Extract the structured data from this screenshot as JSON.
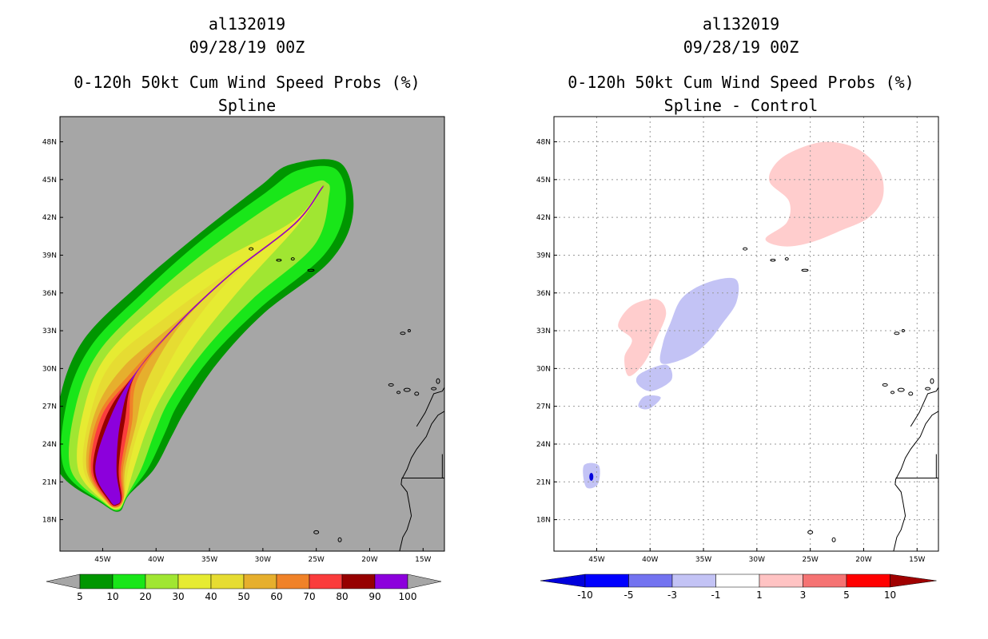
{
  "chart_data": [
    {
      "type": "filled-contour-map",
      "storm_id": "al132019",
      "datetime": "09/28/19 00Z",
      "title": "0-120h 50kt Cum Wind Speed Probs (%)",
      "subtitle": "Spline",
      "xlim": [
        -49,
        -13
      ],
      "ylim": [
        15.5,
        50
      ],
      "lon_ticks": [
        {
          "value": -45,
          "label": "45W"
        },
        {
          "value": -40,
          "label": "40W"
        },
        {
          "value": -35,
          "label": "35W"
        },
        {
          "value": -30,
          "label": "30W"
        },
        {
          "value": -25,
          "label": "25W"
        },
        {
          "value": -20,
          "label": "20W"
        },
        {
          "value": -15,
          "label": "15W"
        }
      ],
      "lat_ticks": [
        {
          "value": 18,
          "label": "18N"
        },
        {
          "value": 21,
          "label": "21N"
        },
        {
          "value": 24,
          "label": "24N"
        },
        {
          "value": 27,
          "label": "27N"
        },
        {
          "value": 30,
          "label": "30N"
        },
        {
          "value": 33,
          "label": "33N"
        },
        {
          "value": 36,
          "label": "36N"
        },
        {
          "value": 39,
          "label": "39N"
        },
        {
          "value": 42,
          "label": "42N"
        },
        {
          "value": 45,
          "label": "45N"
        },
        {
          "value": 48,
          "label": "48N"
        }
      ],
      "grid": false,
      "background": "#a6a6a6",
      "colorbar_labels": [
        "5",
        "10",
        "20",
        "30",
        "40",
        "50",
        "60",
        "70",
        "80",
        "90",
        "100"
      ],
      "colorbar_colors": [
        "#009600",
        "#19e619",
        "#a0e632",
        "#e6eb32",
        "#e6dc32",
        "#e6af2d",
        "#f08228",
        "#fa3c3c",
        "#960000",
        "#8c00dc"
      ],
      "track": [
        {
          "lon": -43.8,
          "lat": 19.6
        },
        {
          "lon": -44.7,
          "lat": 22.0
        },
        {
          "lon": -43.8,
          "lat": 26.0
        },
        {
          "lon": -42.0,
          "lat": 29.5
        },
        {
          "lon": -38.0,
          "lat": 33.5
        },
        {
          "lon": -33.0,
          "lat": 37.5
        },
        {
          "lon": -27.0,
          "lat": 41.5
        },
        {
          "lon": -24.5,
          "lat": 44.3
        }
      ],
      "bands": [
        {
          "level": "5",
          "color": "#009600",
          "hw": [
            1.3,
            4.5,
            5.5,
            5.8,
            5.2,
            4.8,
            4.8,
            3.7
          ]
        },
        {
          "level": "10",
          "color": "#19e619",
          "hw": [
            1.2,
            3.9,
            4.8,
            4.9,
            4.4,
            4.2,
            4.0,
            2.8
          ]
        },
        {
          "level": "20",
          "color": "#a0e632",
          "hw": [
            1.1,
            3.3,
            3.9,
            4.0,
            3.5,
            3.1,
            2.7,
            0.9
          ]
        },
        {
          "level": "30",
          "color": "#e6eb32",
          "hw": [
            1.0,
            2.6,
            3.1,
            3.2,
            2.5,
            1.6,
            0.3,
            0.05
          ]
        },
        {
          "level": "40",
          "color": "#e6dc32",
          "hw": [
            0.9,
            2.1,
            2.4,
            2.4,
            1.2,
            0.3,
            0.05,
            0.05
          ]
        },
        {
          "level": "50",
          "color": "#e6af2d",
          "hw": [
            0.85,
            1.8,
            2.0,
            1.3,
            0.25,
            0.05,
            0.05,
            0.05
          ]
        },
        {
          "level": "60",
          "color": "#f08228",
          "hw": [
            0.8,
            1.6,
            1.6,
            0.4,
            0.05,
            0.05,
            0.05,
            0.05
          ]
        },
        {
          "level": "70",
          "color": "#fa3c3c",
          "hw": [
            0.7,
            1.4,
            1.3,
            0.05,
            0.05,
            0.05,
            0.05,
            0.05
          ]
        },
        {
          "level": "80",
          "color": "#960000",
          "hw": [
            0.6,
            1.2,
            0.9,
            0.05,
            0.05,
            0.05,
            0.05,
            0.05
          ]
        },
        {
          "level": "90",
          "color": "#8c00dc",
          "hw": [
            0.5,
            1.0,
            0.5,
            0.05,
            0.05,
            0.05,
            0.05,
            0.05
          ]
        }
      ]
    },
    {
      "type": "filled-contour-map",
      "storm_id": "al132019",
      "datetime": "09/28/19 00Z",
      "title": "0-120h 50kt Cum Wind Speed Probs (%)",
      "subtitle": "Spline - Control",
      "xlim": [
        -49,
        -13
      ],
      "ylim": [
        15.5,
        50
      ],
      "lon_ticks": [
        {
          "value": -45,
          "label": "45W"
        },
        {
          "value": -40,
          "label": "40W"
        },
        {
          "value": -35,
          "label": "35W"
        },
        {
          "value": -30,
          "label": "30W"
        },
        {
          "value": -25,
          "label": "25W"
        },
        {
          "value": -20,
          "label": "20W"
        },
        {
          "value": -15,
          "label": "15W"
        }
      ],
      "lat_ticks": [
        {
          "value": 18,
          "label": "18N"
        },
        {
          "value": 21,
          "label": "21N"
        },
        {
          "value": 24,
          "label": "24N"
        },
        {
          "value": 27,
          "label": "27N"
        },
        {
          "value": 30,
          "label": "30N"
        },
        {
          "value": 33,
          "label": "33N"
        },
        {
          "value": 36,
          "label": "36N"
        },
        {
          "value": 39,
          "label": "39N"
        },
        {
          "value": 42,
          "label": "42N"
        },
        {
          "value": 45,
          "label": "45N"
        },
        {
          "value": 48,
          "label": "48N"
        }
      ],
      "grid": true,
      "background": "#ffffff",
      "colorbar_labels": [
        "-10",
        "-5",
        "-3",
        "-1",
        "1",
        "3",
        "5",
        "10"
      ],
      "colorbar_colors": [
        "#0000dc",
        "#0000ff",
        "#7373f0",
        "#c3c3f5",
        "#ffffff",
        "#ffc3c3",
        "#f57373",
        "#ff0000",
        "#a00000"
      ],
      "blobs": [
        {
          "color": "#ffcdcd",
          "points": [
            [
              -26.5,
              47.3
            ],
            [
              -23.5,
              48.0
            ],
            [
              -20.5,
              47.4
            ],
            [
              -18.5,
              45.7
            ],
            [
              -18.2,
              43.6
            ],
            [
              -19.5,
              42.0
            ],
            [
              -22.0,
              41.0
            ],
            [
              -25.0,
              40.0
            ],
            [
              -27.5,
              39.7
            ],
            [
              -29.2,
              40.3
            ],
            [
              -27.2,
              41.6
            ],
            [
              -27.0,
              43.3
            ],
            [
              -28.8,
              44.8
            ],
            [
              -28.3,
              46.2
            ]
          ]
        },
        {
          "color": "#ffcdcd",
          "points": [
            [
              -41.7,
              35.0
            ],
            [
              -39.4,
              35.5
            ],
            [
              -38.5,
              34.4
            ],
            [
              -39.4,
              32.4
            ],
            [
              -40.6,
              30.4
            ],
            [
              -42.0,
              29.4
            ],
            [
              -42.4,
              30.9
            ],
            [
              -41.7,
              32.3
            ],
            [
              -43.0,
              33.4
            ]
          ]
        },
        {
          "color": "#c3c3f5",
          "points": [
            [
              -37.0,
              35.6
            ],
            [
              -34.7,
              36.8
            ],
            [
              -32.0,
              37.1
            ],
            [
              -31.9,
              35.3
            ],
            [
              -33.3,
              33.5
            ],
            [
              -34.7,
              32.0
            ],
            [
              -36.5,
              30.9
            ],
            [
              -38.9,
              30.4
            ],
            [
              -38.8,
              32.0
            ],
            [
              -38.1,
              33.6
            ]
          ]
        },
        {
          "color": "#c3c3f5",
          "points": [
            [
              -40.9,
              29.6
            ],
            [
              -38.5,
              30.3
            ],
            [
              -38.0,
              29.1
            ],
            [
              -39.9,
              28.2
            ],
            [
              -41.2,
              28.8
            ]
          ]
        },
        {
          "color": "#c3c3f5",
          "points": [
            [
              -40.5,
              27.8
            ],
            [
              -39.0,
              27.7
            ],
            [
              -40.1,
              26.8
            ],
            [
              -41.1,
              27.0
            ]
          ]
        },
        {
          "color": "#c3c3f5",
          "points": [
            [
              -46.2,
              22.3
            ],
            [
              -44.8,
              22.3
            ],
            [
              -44.9,
              20.8
            ],
            [
              -46.0,
              20.6
            ]
          ]
        }
      ]
    }
  ]
}
